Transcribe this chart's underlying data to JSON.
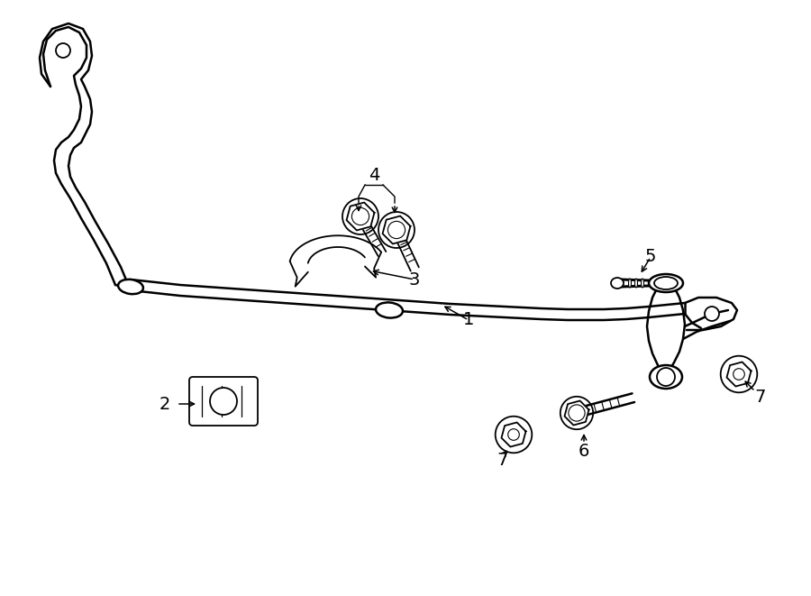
{
  "bg_color": "#ffffff",
  "line_color": "#000000",
  "fig_width": 9.0,
  "fig_height": 6.61,
  "dpi": 100,
  "lw": 1.3,
  "lw2": 1.8
}
